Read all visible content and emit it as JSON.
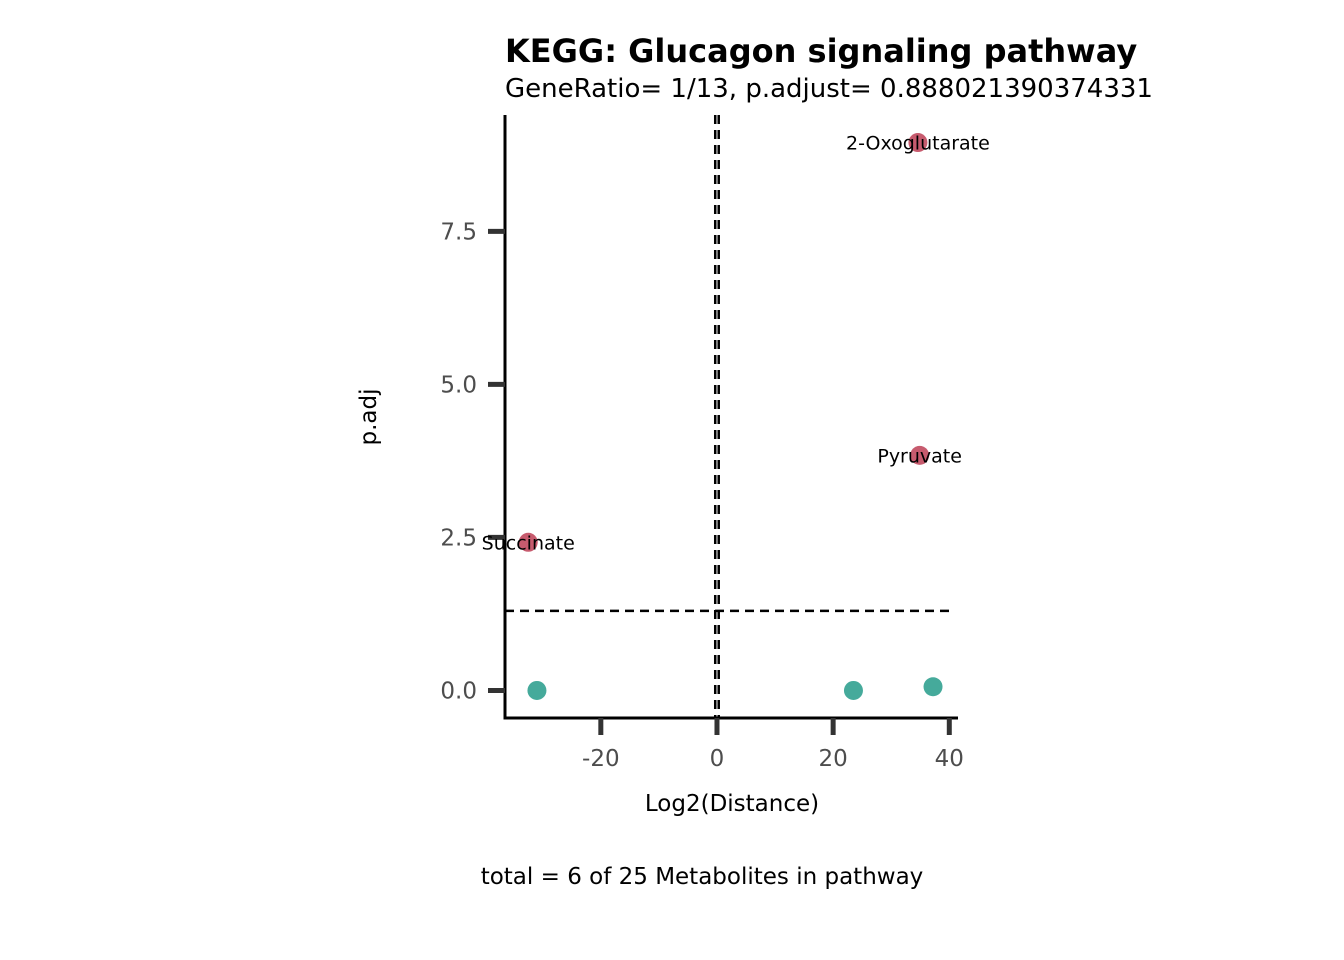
{
  "chart_data": {
    "type": "scatter",
    "title": "KEGG: Glucagon signaling pathway",
    "subtitle": "GeneRatio= 1/13, p.adjust= 0.888021390374331",
    "xlabel": "Log2(Distance)",
    "ylabel": "p.adj",
    "caption": "total = 6 of 25 Metabolites in pathway",
    "xlim": [
      -36.5,
      41.5
    ],
    "ylim": [
      -0.45,
      9.4
    ],
    "x_ticks": [
      -20,
      0,
      20,
      40
    ],
    "x_tick_labels": [
      "-20",
      "0",
      "20",
      "40"
    ],
    "y_ticks": [
      0,
      2.5,
      5,
      7.5
    ],
    "y_tick_labels": [
      "0.0",
      "2.5",
      "5.0",
      "7.5"
    ],
    "vlines": [
      -0.3,
      0.3
    ],
    "hline": 1.3,
    "grid": false,
    "colors": {
      "significant": "#c75b6e",
      "not_significant": "#45aa9b"
    },
    "points": [
      {
        "x": 34.6,
        "y": 8.95,
        "label": "2-Oxoglutarate",
        "group": "significant"
      },
      {
        "x": 34.9,
        "y": 3.84,
        "label": "Pyruvate",
        "group": "significant"
      },
      {
        "x": -32.5,
        "y": 2.42,
        "label": "Succinate",
        "group": "significant"
      },
      {
        "x": -31.0,
        "y": 0.0,
        "label": "",
        "group": "not_significant"
      },
      {
        "x": 23.5,
        "y": 0.0,
        "label": "",
        "group": "not_significant"
      },
      {
        "x": 37.2,
        "y": 0.06,
        "label": "",
        "group": "not_significant"
      }
    ]
  }
}
